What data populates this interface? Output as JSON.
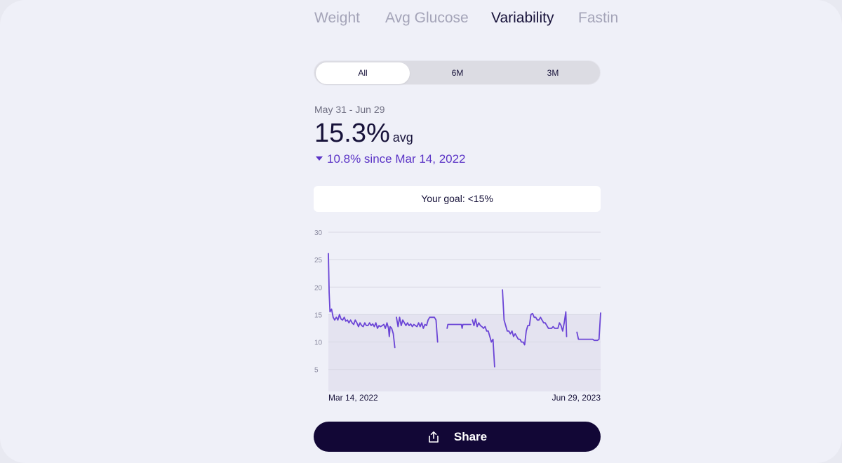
{
  "tabs": [
    {
      "label": "Weight"
    },
    {
      "label": "Avg Glucose"
    },
    {
      "label": "Variability"
    },
    {
      "label": "Fasting"
    }
  ],
  "active_tab": "Variability",
  "segments": [
    {
      "label": "All"
    },
    {
      "label": "6M"
    },
    {
      "label": "3M"
    }
  ],
  "active_segment": "All",
  "summary": {
    "range": "May 31 - Jun 29",
    "value": "15.3%",
    "value_suffix": "avg",
    "change": "10.8% since Mar 14, 2022"
  },
  "goal": {
    "label": "Your goal: <15%"
  },
  "share": {
    "label": "Share",
    "icon": "share-icon"
  },
  "colors": {
    "line": "#6b45d6",
    "goal_band": "#e4e3f0",
    "accent": "#5b34c6",
    "share_bg": "#120736"
  },
  "chart_data": {
    "type": "line",
    "xlabel": "",
    "ylabel": "",
    "x_tick_labels": [
      "Mar 14, 2022",
      "Jun 29, 2023"
    ],
    "y_ticks": [
      5,
      10,
      15,
      20,
      25,
      30
    ],
    "ylim": [
      1,
      30
    ],
    "grid": true,
    "goal_band": [
      0,
      15
    ],
    "series": [
      {
        "segments": [
          [
            [
              0,
              26.1
            ],
            [
              0.5,
              19
            ],
            [
              1,
              15.5
            ],
            [
              2,
              16
            ],
            [
              3,
              14.5
            ],
            [
              4,
              14
            ],
            [
              5,
              14.5
            ],
            [
              6,
              14
            ],
            [
              7,
              15
            ],
            [
              8,
              14.2
            ],
            [
              9,
              14
            ],
            [
              10,
              14.5
            ],
            [
              11,
              13.8
            ],
            [
              12,
              14
            ],
            [
              13,
              13.5
            ],
            [
              14,
              14
            ],
            [
              15,
              13.5
            ],
            [
              16,
              13.2
            ],
            [
              17,
              14
            ],
            [
              18,
              13.5
            ],
            [
              19,
              12.8
            ],
            [
              20,
              13.5
            ],
            [
              21,
              13
            ],
            [
              22,
              12.8
            ],
            [
              23,
              13.5
            ],
            [
              24,
              13
            ],
            [
              25,
              13
            ],
            [
              26,
              13.5
            ],
            [
              27,
              13
            ],
            [
              28,
              13.3
            ],
            [
              29,
              12.8
            ],
            [
              30,
              13.5
            ],
            [
              31,
              12.5
            ],
            [
              32,
              13
            ],
            [
              33,
              12.8
            ],
            [
              34,
              13
            ],
            [
              35,
              13.2
            ],
            [
              36,
              12.5
            ],
            [
              37,
              13.5
            ],
            [
              38,
              12.5
            ],
            [
              38.5,
              11
            ],
            [
              39,
              12.8
            ],
            [
              40,
              12.5
            ],
            [
              41,
              11.5
            ],
            [
              42,
              9
            ]
          ],
          [
            [
              43,
              14.5
            ],
            [
              44,
              12.8
            ],
            [
              45,
              14.5
            ],
            [
              46,
              13
            ],
            [
              47,
              14
            ],
            [
              48,
              13.5
            ],
            [
              49,
              13
            ],
            [
              50,
              13.5
            ],
            [
              51,
              13
            ],
            [
              52,
              13.3
            ],
            [
              53,
              12.8
            ],
            [
              54,
              13.2
            ],
            [
              55,
              13
            ],
            [
              56,
              12.8
            ],
            [
              57,
              13.5
            ],
            [
              58,
              12.8
            ],
            [
              59,
              13.5
            ],
            [
              60,
              12.5
            ],
            [
              61,
              13.2
            ],
            [
              62,
              13
            ],
            [
              63,
              14
            ],
            [
              64,
              14.5
            ],
            [
              65,
              14.5
            ],
            [
              66,
              14.5
            ],
            [
              67,
              14.5
            ],
            [
              68,
              14
            ],
            [
              69,
              10
            ]
          ],
          [
            [
              75,
              12.5
            ],
            [
              75.5,
              13.2
            ],
            [
              80,
              13.2
            ],
            [
              84,
              13.2
            ],
            [
              84.5,
              12.5
            ],
            [
              85,
              13.2
            ],
            [
              90,
              13.2
            ]
          ],
          [
            [
              91,
              14
            ],
            [
              92,
              13
            ],
            [
              93,
              14.2
            ],
            [
              94,
              12.8
            ],
            [
              95,
              13.5
            ],
            [
              96,
              13
            ],
            [
              97,
              12.8
            ],
            [
              98,
              12.5
            ],
            [
              99,
              12.8
            ],
            [
              100,
              12
            ],
            [
              101,
              12
            ],
            [
              102,
              11
            ],
            [
              103,
              10
            ],
            [
              104,
              10.5
            ],
            [
              105,
              5.5
            ]
          ],
          [
            [
              110,
              19.5
            ],
            [
              111,
              14
            ],
            [
              112,
              13
            ],
            [
              113,
              12
            ],
            [
              114,
              12
            ],
            [
              115,
              11.5
            ],
            [
              116,
              12
            ],
            [
              117,
              11
            ],
            [
              118,
              11.5
            ],
            [
              119,
              11
            ],
            [
              120,
              10.5
            ],
            [
              121,
              10.5
            ],
            [
              122,
              10
            ],
            [
              123,
              10
            ],
            [
              124,
              9.5
            ],
            [
              125,
              12
            ],
            [
              126,
              13
            ],
            [
              127,
              13
            ],
            [
              128,
              15
            ],
            [
              129,
              15.2
            ],
            [
              130,
              14.5
            ],
            [
              131,
              14.5
            ],
            [
              132,
              14
            ],
            [
              133,
              14
            ],
            [
              134,
              14.5
            ],
            [
              135,
              14
            ],
            [
              136,
              13.5
            ],
            [
              137,
              13.5
            ],
            [
              138,
              13
            ],
            [
              139,
              12.5
            ],
            [
              140,
              12.5
            ],
            [
              141,
              12.5
            ],
            [
              142,
              12.8
            ],
            [
              143,
              12.5
            ],
            [
              144,
              12.5
            ],
            [
              145,
              12.5
            ],
            [
              146,
              13.5
            ],
            [
              147,
              13
            ],
            [
              148,
              12
            ],
            [
              149,
              13.5
            ],
            [
              150,
              15.5
            ],
            [
              150.5,
              11
            ]
          ],
          [
            [
              157,
              11.8
            ],
            [
              158,
              10.5
            ],
            [
              159,
              10.5
            ],
            [
              160,
              10.5
            ],
            [
              161,
              10.5
            ],
            [
              162,
              10.5
            ],
            [
              163,
              10.5
            ],
            [
              164,
              10.5
            ],
            [
              165,
              10.5
            ],
            [
              166,
              10.5
            ],
            [
              167,
              10.5
            ],
            [
              168,
              10.3
            ],
            [
              169,
              10.3
            ],
            [
              170,
              10.3
            ],
            [
              171,
              10.5
            ],
            [
              172,
              15.3
            ]
          ]
        ]
      }
    ],
    "x_range": [
      0,
      172
    ]
  }
}
